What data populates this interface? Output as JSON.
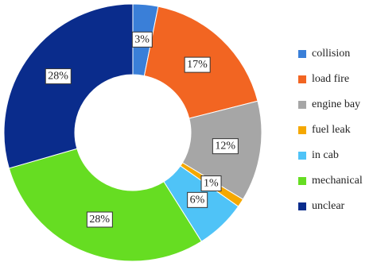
{
  "chart_data": {
    "type": "pie",
    "donut": true,
    "categories": [
      "collision",
      "load fire",
      "engine bay",
      "fuel leak",
      "in cab",
      "mechanical",
      "unclear"
    ],
    "values": [
      3,
      17,
      12,
      1,
      6,
      28,
      28
    ],
    "value_labels": [
      "3%",
      "17%",
      "12%",
      "1%",
      "6%",
      "28%",
      "28%"
    ],
    "colors": [
      "#3a7fd8",
      "#f26522",
      "#a6a6a6",
      "#f5a800",
      "#4fc3f7",
      "#66dd22",
      "#0a2c8c"
    ],
    "legend": "right"
  }
}
